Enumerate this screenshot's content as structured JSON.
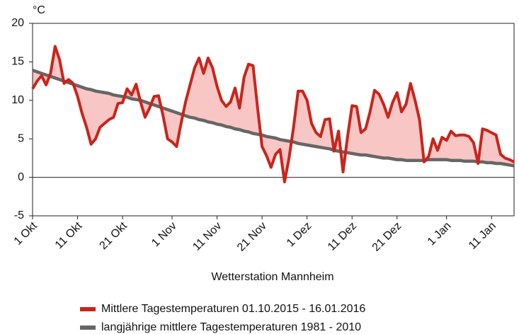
{
  "chart_data": {
    "type": "line",
    "y_unit": "°C",
    "x_label": "Wetterstation Mannheim",
    "categories": [
      "1 Okt",
      null,
      null,
      null,
      null,
      null,
      null,
      null,
      null,
      null,
      "11 Okt",
      null,
      null,
      null,
      null,
      null,
      null,
      null,
      null,
      null,
      "21 Okt",
      null,
      null,
      null,
      null,
      null,
      null,
      null,
      null,
      null,
      null,
      "1 Nov",
      null,
      null,
      null,
      null,
      null,
      null,
      null,
      null,
      null,
      "11 Nov",
      null,
      null,
      null,
      null,
      null,
      null,
      null,
      null,
      null,
      "21 Nov",
      null,
      null,
      null,
      null,
      null,
      null,
      null,
      null,
      null,
      "1 Dez",
      null,
      null,
      null,
      null,
      null,
      null,
      null,
      null,
      null,
      "11 Dez",
      null,
      null,
      null,
      null,
      null,
      null,
      null,
      null,
      null,
      "21 Dez",
      null,
      null,
      null,
      null,
      null,
      null,
      null,
      null,
      null,
      null,
      "1 Jan",
      null,
      null,
      null,
      null,
      null,
      null,
      null,
      null,
      null,
      "11 Jan",
      null,
      null,
      null,
      null,
      null
    ],
    "series": [
      {
        "name": "Mittlere Tagestemperaturen 01.10.2015 - 16.01.2016",
        "color": "#c8251c",
        "values": [
          11.5,
          12.5,
          13.2,
          12.0,
          13.5,
          17.0,
          15.3,
          12.2,
          12.7,
          12.2,
          10.5,
          8.3,
          6.5,
          4.3,
          5.0,
          6.5,
          7.0,
          7.5,
          7.8,
          9.6,
          9.7,
          11.5,
          10.7,
          12.1,
          9.8,
          7.8,
          9.0,
          10.5,
          10.6,
          8.0,
          5.0,
          4.6,
          4.0,
          7.0,
          9.8,
          12.0,
          14.2,
          15.5,
          13.5,
          15.5,
          14.2,
          11.8,
          10.0,
          9.2,
          9.8,
          11.6,
          9.0,
          13.0,
          14.7,
          14.5,
          9.0,
          4.0,
          2.8,
          1.3,
          3.0,
          3.6,
          -0.6,
          2.5,
          6.5,
          11.2,
          11.2,
          10.0,
          7.0,
          5.8,
          5.3,
          7.5,
          7.6,
          3.4,
          6.0,
          0.7,
          5.3,
          9.3,
          9.2,
          5.8,
          6.3,
          8.5,
          11.3,
          10.8,
          9.5,
          7.8,
          9.7,
          11.0,
          8.5,
          9.5,
          12.2,
          10.0,
          7.5,
          2.0,
          2.7,
          5.0,
          3.5,
          5.2,
          4.8,
          6.0,
          5.4,
          5.5,
          5.5,
          5.3,
          4.5,
          1.8,
          6.3,
          6.1,
          5.8,
          5.5,
          3.0,
          2.5,
          2.3,
          2.0
        ]
      },
      {
        "name": "langjährige mittlere Tagestemperaturen 1981 - 2010",
        "color": "#666666",
        "values": [
          13.9,
          13.7,
          13.5,
          13.3,
          13.1,
          12.9,
          12.7,
          12.5,
          12.3,
          12.1,
          11.9,
          11.7,
          11.5,
          11.4,
          11.2,
          11.1,
          11.0,
          10.9,
          10.7,
          10.6,
          10.5,
          10.4,
          10.2,
          10.1,
          10.0,
          9.8,
          9.6,
          9.4,
          9.2,
          9.0,
          8.8,
          8.6,
          8.4,
          8.2,
          8.0,
          7.8,
          7.7,
          7.5,
          7.4,
          7.2,
          7.1,
          6.9,
          6.8,
          6.6,
          6.5,
          6.3,
          6.2,
          6.0,
          5.9,
          5.7,
          5.6,
          5.5,
          5.3,
          5.2,
          5.1,
          4.9,
          4.8,
          4.7,
          4.6,
          4.4,
          4.3,
          4.2,
          4.1,
          4.0,
          3.9,
          3.8,
          3.7,
          3.5,
          3.4,
          3.3,
          3.2,
          3.1,
          3.0,
          2.9,
          2.9,
          2.8,
          2.7,
          2.6,
          2.5,
          2.5,
          2.4,
          2.3,
          2.3,
          2.2,
          2.2,
          2.2,
          2.2,
          2.2,
          2.3,
          2.3,
          2.3,
          2.3,
          2.3,
          2.2,
          2.2,
          2.2,
          2.1,
          2.1,
          2.1,
          2.0,
          2.0,
          1.9,
          1.9,
          1.8,
          1.8,
          1.7,
          1.6,
          1.5
        ]
      }
    ],
    "fill_color": "#f8c6c4",
    "ylim": [
      -5,
      20
    ],
    "yticks": [
      -5,
      0,
      5,
      10,
      15,
      20
    ]
  }
}
